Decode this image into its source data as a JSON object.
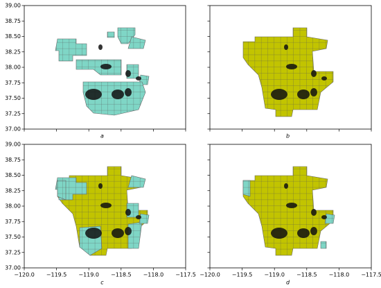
{
  "chart_data": {
    "type": "map",
    "xlim": [
      -120,
      -117.5
    ],
    "ylim": [
      37,
      39
    ],
    "xticks": [
      {
        "value": -120,
        "label": "−120.0"
      },
      {
        "value": -119.5,
        "label": "−119.5"
      },
      {
        "value": -119,
        "label": "−119.0"
      },
      {
        "value": -118.5,
        "label": "−118.5"
      },
      {
        "value": -118,
        "label": "−118.0"
      },
      {
        "value": -117.5,
        "label": "−117.5"
      }
    ],
    "yticks": [
      {
        "value": 37,
        "label": "37.00"
      },
      {
        "value": 37.25,
        "label": "37.25"
      },
      {
        "value": 37.5,
        "label": "37.50"
      },
      {
        "value": 37.75,
        "label": "37.75"
      },
      {
        "value": 38,
        "label": "38.00"
      },
      {
        "value": 38.25,
        "label": "38.25"
      },
      {
        "value": 38.5,
        "label": "38.50"
      },
      {
        "value": 38.75,
        "label": "38.75"
      },
      {
        "value": 39,
        "label": "39.00"
      }
    ],
    "panels": [
      {
        "label": "a"
      },
      {
        "label": "b"
      },
      {
        "label": "c"
      },
      {
        "label": "d"
      }
    ]
  }
}
